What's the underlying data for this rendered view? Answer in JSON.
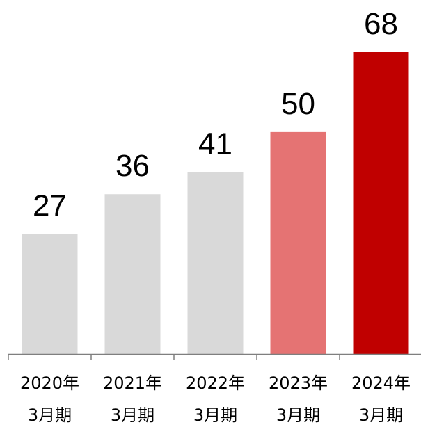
{
  "chart_data": {
    "type": "bar",
    "categories": [
      [
        "2020年",
        "3月期"
      ],
      [
        "2021年",
        "3月期"
      ],
      [
        "2022年",
        "3月期"
      ],
      [
        "2023年",
        "3月期"
      ],
      [
        "2024年",
        "3月期"
      ]
    ],
    "values": [
      27,
      36,
      41,
      50,
      68
    ],
    "data_labels": [
      "27",
      "36",
      "41",
      "50",
      "68"
    ],
    "bar_colors": [
      "#d9d9d9",
      "#d9d9d9",
      "#d9d9d9",
      "#e57373",
      "#c00000"
    ],
    "axis_color": "#7f7f7f",
    "ylim": [
      0,
      68
    ],
    "title": "",
    "xlabel": "",
    "ylabel": "",
    "grid": false,
    "legend": "none"
  }
}
